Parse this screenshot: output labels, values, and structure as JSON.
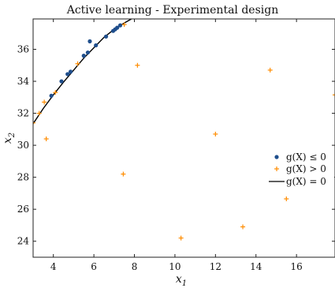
{
  "chart_data": {
    "type": "scatter",
    "title": "Active learning - Experimental design",
    "xlabel": "x",
    "xlabel_sub": "1",
    "ylabel": "x",
    "ylabel_sub": "2",
    "xlim": [
      3.0,
      17.9
    ],
    "ylim": [
      23.0,
      37.9
    ],
    "xticks": [
      4,
      6,
      8,
      10,
      12,
      14,
      16
    ],
    "yticks": [
      24,
      26,
      28,
      30,
      32,
      34,
      36
    ],
    "grid": false,
    "legend_position": "right",
    "series": [
      {
        "name": "g(X) ≤ 0",
        "marker": "dot",
        "color": "#1f4e8c",
        "x": [
          3.9,
          4.4,
          4.7,
          4.85,
          5.5,
          5.7,
          5.8,
          6.1,
          6.6,
          6.95,
          7.05,
          7.15,
          7.3
        ],
        "y": [
          33.1,
          34.0,
          34.45,
          34.6,
          35.6,
          35.8,
          36.5,
          36.25,
          36.8,
          37.15,
          37.25,
          37.35,
          37.5
        ]
      },
      {
        "name": "g(X) > 0",
        "marker": "plus",
        "color": "#ff8c00",
        "x": [
          3.0,
          3.3,
          3.55,
          3.65,
          4.1,
          5.2,
          7.45,
          7.5,
          8.15,
          10.3,
          12.0,
          13.35,
          14.7,
          15.5,
          17.9
        ],
        "y": [
          31.4,
          32.0,
          32.7,
          30.4,
          33.3,
          35.1,
          28.2,
          37.55,
          35.0,
          24.2,
          30.7,
          24.9,
          34.7,
          26.65,
          33.15
        ]
      },
      {
        "name": "g(X) = 0",
        "marker": "line",
        "color": "#000000",
        "x": [
          3.0,
          3.5,
          4.0,
          4.5,
          5.0,
          5.5,
          6.0,
          6.5,
          7.0,
          7.5,
          7.85
        ],
        "y": [
          31.35,
          32.3,
          33.15,
          33.95,
          34.7,
          35.45,
          36.1,
          36.75,
          37.25,
          37.65,
          37.9
        ]
      }
    ]
  }
}
